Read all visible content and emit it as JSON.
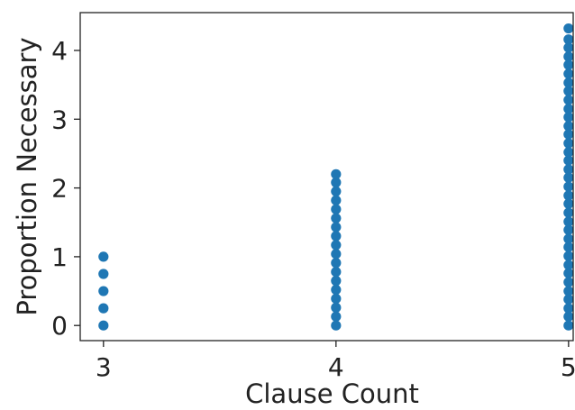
{
  "chart_data": {
    "type": "scatter",
    "title": "",
    "xlabel": "Clause Count",
    "ylabel": "Proportion Necessary",
    "xlim": [
      2.9,
      5.02
    ],
    "ylim": [
      -0.22,
      4.55
    ],
    "xticks": [
      3,
      4,
      5
    ],
    "xtick_labels": [
      "3",
      "4",
      "5"
    ],
    "yticks": [
      0,
      1,
      2,
      3,
      4
    ],
    "ytick_labels": [
      "0",
      "1",
      "2",
      "3",
      "4"
    ],
    "grid": false,
    "legend": "none",
    "color": "#1f77b4",
    "series": [
      {
        "x": [
          3,
          3,
          3,
          3,
          3
        ],
        "y": [
          0,
          0.25,
          0.5,
          0.75,
          1.0
        ]
      },
      {
        "x": [
          4,
          4,
          4,
          4,
          4,
          4,
          4,
          4,
          4,
          4,
          4,
          4,
          4,
          4,
          4,
          4,
          4,
          4
        ],
        "y": [
          0,
          0.13,
          0.26,
          0.39,
          0.52,
          0.65,
          0.78,
          0.91,
          1.04,
          1.17,
          1.3,
          1.43,
          1.56,
          1.69,
          1.82,
          1.95,
          2.08,
          2.2
        ]
      },
      {
        "x": [
          5,
          5,
          5,
          5,
          5,
          5,
          5,
          5,
          5,
          5,
          5,
          5,
          5,
          5,
          5,
          5,
          5,
          5,
          5,
          5,
          5,
          5,
          5,
          5,
          5,
          5,
          5,
          5,
          5,
          5,
          5,
          5,
          5,
          5,
          5
        ],
        "y": [
          0,
          0.13,
          0.25,
          0.38,
          0.5,
          0.63,
          0.76,
          0.88,
          1.01,
          1.14,
          1.26,
          1.39,
          1.51,
          1.64,
          1.77,
          1.89,
          2.02,
          2.15,
          2.27,
          2.4,
          2.52,
          2.65,
          2.78,
          2.9,
          3.03,
          3.15,
          3.28,
          3.41,
          3.53,
          3.66,
          3.79,
          3.91,
          4.04,
          4.16,
          4.32
        ]
      }
    ]
  }
}
